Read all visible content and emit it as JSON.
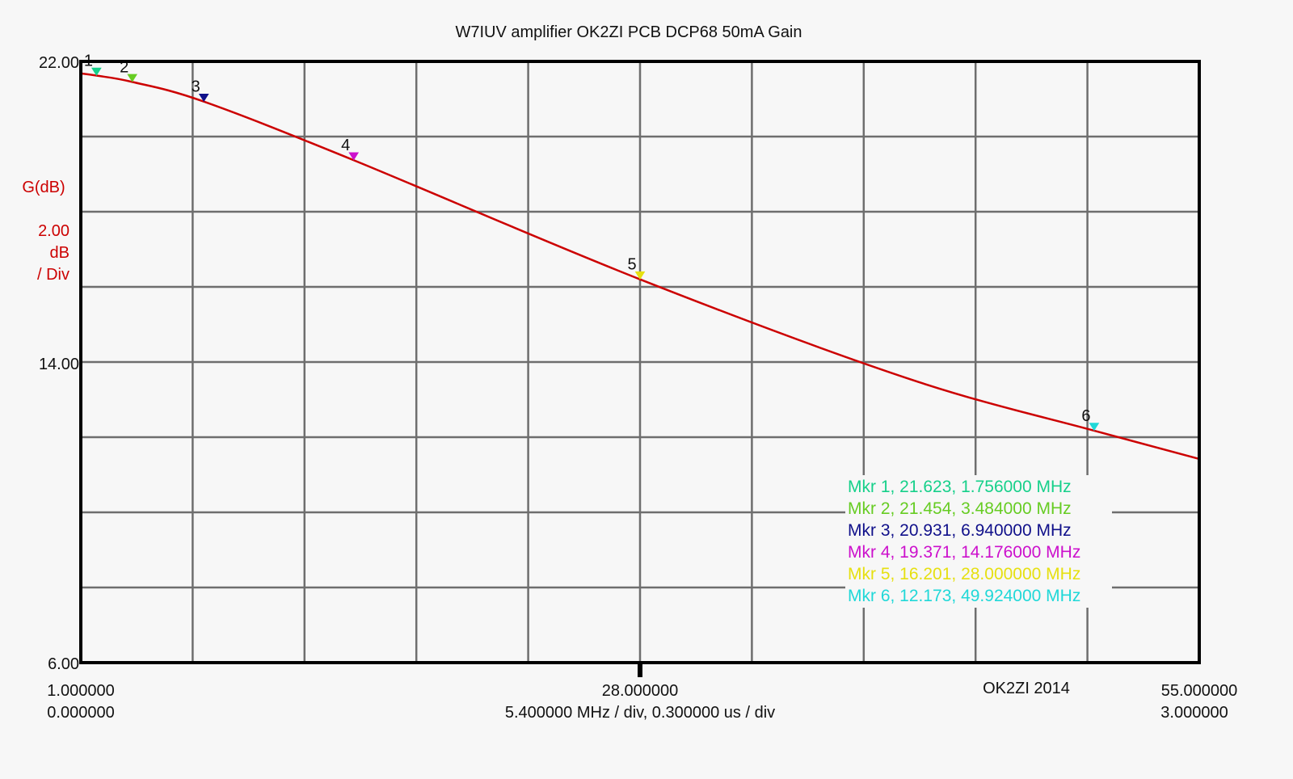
{
  "chart_data": {
    "type": "line",
    "title": "W7IUV amplifier OK2ZI PCB DCP68 50mA Gain",
    "ylabel": "G(dB)",
    "y_scale_label": [
      "2.00",
      "dB",
      "/ Div"
    ],
    "xlim": [
      1,
      55
    ],
    "ylim": [
      6,
      22
    ],
    "x_divisions": 10,
    "y_divisions": 8,
    "grid": true,
    "y_tick_labels": [
      {
        "value": 22,
        "label": "22.00"
      },
      {
        "value": 14,
        "label": "14.00"
      },
      {
        "value": 6,
        "label": "6.00"
      }
    ],
    "x_tick_labels": [
      {
        "value": 1,
        "label": "1.000000",
        "sub": "0.000000"
      },
      {
        "value": 28,
        "label": "28.000000"
      },
      {
        "value": 55,
        "label": "55.000000",
        "sub": "3.000000"
      }
    ],
    "x_center_caption": "5.400000 MHz / div, 0.300000 us / div",
    "watermark": "OK2ZI 2014",
    "trace_color": "#cc0000",
    "series": [
      {
        "x": [
          1,
          1.756,
          3.484,
          6.94,
          14.176,
          28,
          41,
          49.924,
          55
        ],
        "y": [
          21.68,
          21.623,
          21.454,
          20.931,
          19.371,
          16.201,
          13.55,
          12.173,
          11.42
        ]
      }
    ],
    "markers": [
      {
        "id": "1",
        "y": 21.623,
        "x": 1.756,
        "color": "#16d08a",
        "text": "Mkr 1, 21.623, 1.756000 MHz"
      },
      {
        "id": "2",
        "y": 21.454,
        "x": 3.484,
        "color": "#66cc22",
        "text": "Mkr 2, 21.454, 3.484000 MHz"
      },
      {
        "id": "3",
        "y": 20.931,
        "x": 6.94,
        "color": "#10108a",
        "text": "Mkr 3, 20.931, 6.940000 MHz"
      },
      {
        "id": "4",
        "y": 19.371,
        "x": 14.176,
        "color": "#cc10cc",
        "text": "Mkr 4, 19.371, 14.176000 MHz"
      },
      {
        "id": "5",
        "y": 16.201,
        "x": 28.0,
        "color": "#e6e010",
        "text": "Mkr 5, 16.201, 28.000000 MHz"
      },
      {
        "id": "6",
        "y": 12.173,
        "x": 49.924,
        "color": "#20d8d8",
        "text": "Mkr 6, 12.173, 49.924000 MHz"
      }
    ]
  }
}
